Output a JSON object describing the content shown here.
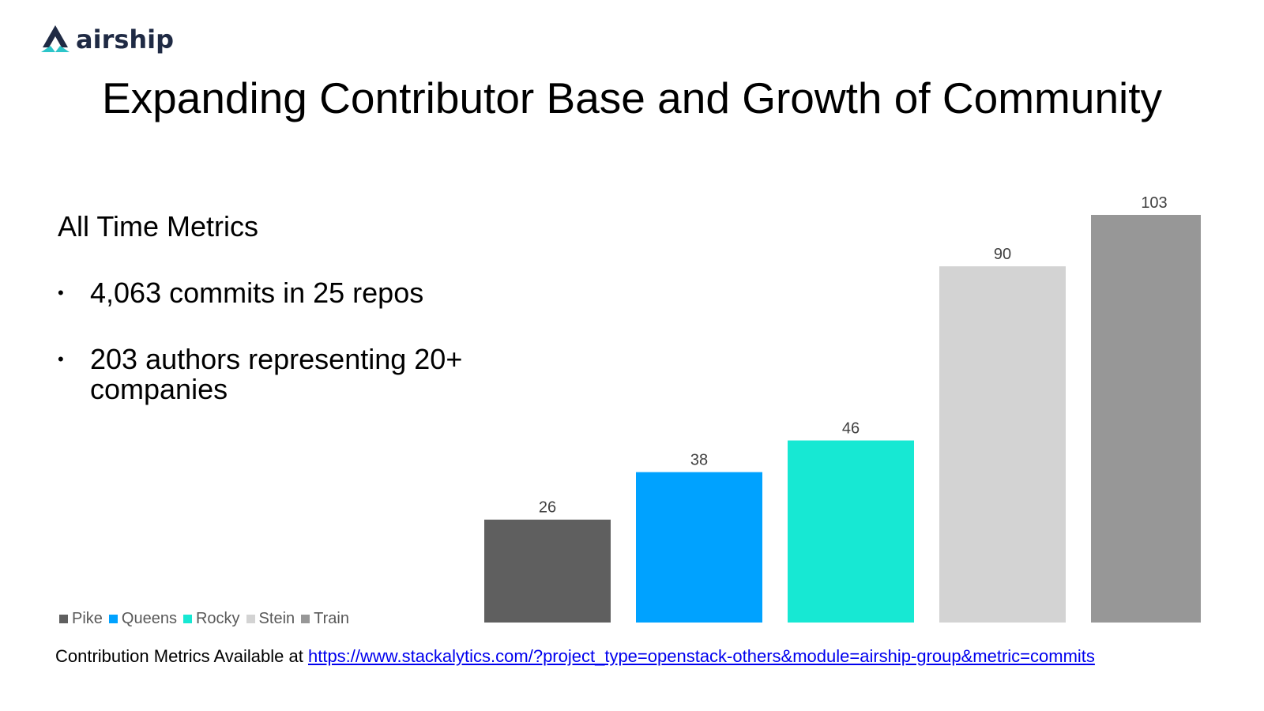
{
  "logo": {
    "text": "airship"
  },
  "slide": {
    "title": "Expanding Contributor Base and Growth of Community",
    "subheading": "All Time Metrics",
    "bullets": [
      "4,063 commits in 25 repos",
      "203 authors representing 20+ companies"
    ]
  },
  "footer": {
    "prefix": "Contribution Metrics Available at ",
    "link_text": "https://www.stackalytics.com/?project_type=openstack-others&module=airship-group&metric=commits"
  },
  "chart_data": {
    "type": "bar",
    "categories": [
      "Pike",
      "Queens",
      "Rocky",
      "Stein",
      "Train"
    ],
    "values": [
      26,
      38,
      46,
      90,
      103
    ],
    "colors": [
      "#5f5f5f",
      "#00a2ff",
      "#17e8d3",
      "#d3d3d3",
      "#979797"
    ],
    "data_labels": [
      "26",
      "38",
      "46",
      "90",
      "103"
    ],
    "legend": [
      "Pike",
      "Queens",
      "Rocky",
      "Stein",
      "Train"
    ],
    "legend_position": "bottom-left",
    "title": "",
    "xlabel": "",
    "ylabel": "",
    "ylim": [
      0,
      103
    ],
    "grid": false
  }
}
